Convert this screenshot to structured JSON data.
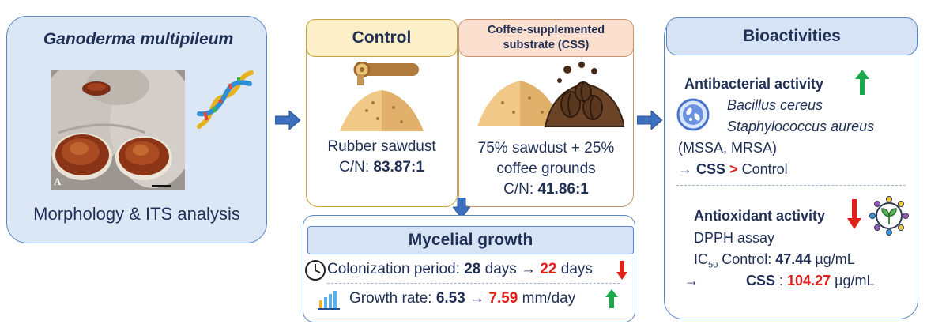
{
  "left": {
    "title": "Ganoderma multipileum",
    "photo_label": "A",
    "caption": "Morphology & ITS analysis"
  },
  "control": {
    "header": "Control",
    "line1": "Rubber sawdust",
    "cn_label": "C/N: ",
    "cn_value": "83.87:1"
  },
  "css": {
    "header_line1": "Coffee-supplemented",
    "header_line2": "substrate (CSS)",
    "line1": "75% sawdust + 25%",
    "line2": "coffee grounds",
    "cn_label": "C/N: ",
    "cn_value": "41.86:1"
  },
  "growth": {
    "header": "Mycelial growth",
    "colonization_label": "Colonization period: ",
    "colonization_from": "28",
    "colonization_unit1": " days ",
    "colonization_arrow": "→",
    "colonization_to": "22",
    "colonization_unit2": " days",
    "rate_label": "Growth rate: ",
    "rate_from": "6.53",
    "rate_arrow": "→",
    "rate_to": "7.59",
    "rate_unit": " mm/day"
  },
  "bio": {
    "header": "Bioactivities",
    "antibacterial_title": "Antibacterial activity",
    "organism1": "Bacillus cereus",
    "organism2": "Staphylococcus aureus",
    "strains": "(MSSA, MRSA)",
    "compare_arrow": "→",
    "compare_css": "CSS",
    "compare_gt": ">",
    "compare_control": " Control",
    "antioxidant_title": "Antioxidant activity",
    "assay": "DPPH assay",
    "ic50_base": "IC",
    "ic50_sub": "50",
    "control_label": " Control: ",
    "control_value": "47.44",
    "unit": " µg/mL",
    "css_arrow": "→",
    "css_label": "CSS",
    "css_sep": " : ",
    "css_value": "104.27",
    "unit2": " µg/mL"
  },
  "colors": {
    "navy": "#1f2f55",
    "red": "#e0201b",
    "green": "#19a84a",
    "arrow_blue": "#3d6fbf"
  }
}
